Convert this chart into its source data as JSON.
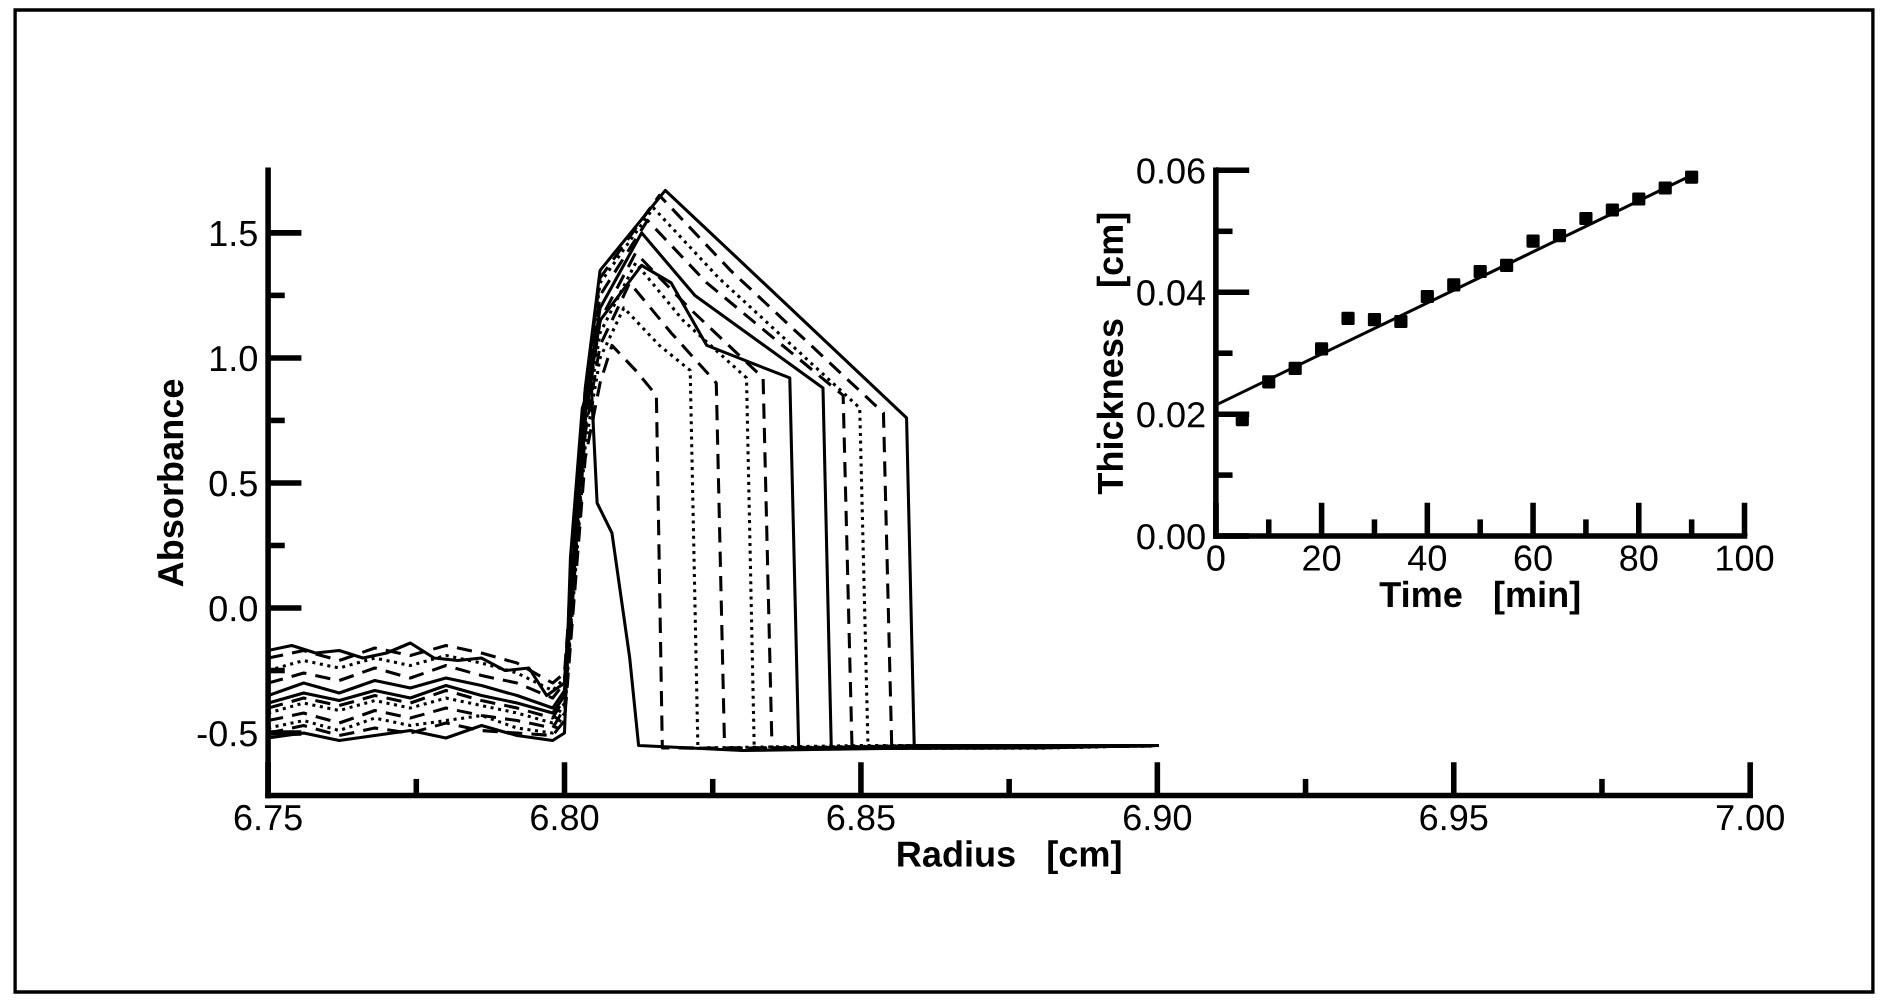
{
  "chart_data": [
    {
      "type": "line",
      "xlabel": "Radius   [cm]",
      "ylabel": "Absorbance",
      "xlim": [
        6.75,
        7.0
      ],
      "ylim": [
        -0.75,
        1.75
      ],
      "xticks": [
        {
          "value": 6.75,
          "label": "6.75"
        },
        {
          "value": 6.775,
          "label": null
        },
        {
          "value": 6.8,
          "label": "6.80"
        },
        {
          "value": 6.825,
          "label": null
        },
        {
          "value": 6.85,
          "label": "6.85"
        },
        {
          "value": 6.875,
          "label": null
        },
        {
          "value": 6.9,
          "label": "6.90"
        },
        {
          "value": 6.925,
          "label": null
        },
        {
          "value": 6.95,
          "label": "6.95"
        },
        {
          "value": 6.975,
          "label": null
        },
        {
          "value": 7.0,
          "label": "7.00"
        }
      ],
      "yticks": [
        {
          "value": -0.5,
          "label": "-0.5"
        },
        {
          "value": -0.25,
          "label": null
        },
        {
          "value": 0.0,
          "label": "0.0"
        },
        {
          "value": 0.25,
          "label": null
        },
        {
          "value": 0.5,
          "label": "0.5"
        },
        {
          "value": 0.75,
          "label": null
        },
        {
          "value": 1.0,
          "label": "1.0"
        },
        {
          "value": 1.25,
          "label": null
        },
        {
          "value": 1.5,
          "label": "1.5"
        }
      ],
      "grid": false,
      "legend": false,
      "marker": "none",
      "series": [
        {
          "color": "#000000",
          "line_style": "solid",
          "x": [
            6.75,
            6.756,
            6.762,
            6.768,
            6.774,
            6.78,
            6.786,
            6.792,
            6.798,
            6.8,
            6.801,
            6.803,
            6.8045,
            6.8055,
            6.808,
            6.811,
            6.8125,
            6.83,
            6.86,
            6.88,
            6.9
          ],
          "values": [
            -0.52,
            -0.5,
            -0.53,
            -0.51,
            -0.49,
            -0.52,
            -0.47,
            -0.51,
            -0.53,
            -0.5,
            0.2,
            0.8,
            0.9,
            0.42,
            0.3,
            -0.2,
            -0.55,
            -0.57,
            -0.56,
            -0.55,
            -0.55
          ]
        },
        {
          "color": "#000000",
          "line_style": "dashed",
          "x": [
            6.75,
            6.756,
            6.762,
            6.768,
            6.774,
            6.78,
            6.786,
            6.792,
            6.798,
            6.8,
            6.8035,
            6.806,
            6.808,
            6.812,
            6.8155,
            6.8165,
            6.84,
            6.9
          ],
          "values": [
            -0.5,
            -0.47,
            -0.51,
            -0.48,
            -0.5,
            -0.46,
            -0.49,
            -0.5,
            -0.51,
            -0.45,
            0.6,
            0.9,
            1.05,
            0.95,
            0.85,
            -0.56,
            -0.56,
            -0.55
          ]
        },
        {
          "color": "#000000",
          "line_style": "dotted",
          "x": [
            6.75,
            6.756,
            6.762,
            6.768,
            6.774,
            6.78,
            6.786,
            6.792,
            6.798,
            6.8,
            6.8035,
            6.806,
            6.81,
            6.816,
            6.8212,
            6.8225,
            6.85,
            6.9
          ],
          "values": [
            -0.48,
            -0.45,
            -0.49,
            -0.44,
            -0.47,
            -0.45,
            -0.43,
            -0.48,
            -0.5,
            -0.42,
            0.65,
            1.0,
            1.2,
            1.05,
            0.95,
            -0.56,
            -0.55,
            -0.55
          ]
        },
        {
          "color": "#000000",
          "line_style": "dashed",
          "x": [
            6.75,
            6.756,
            6.762,
            6.768,
            6.774,
            6.78,
            6.786,
            6.792,
            6.798,
            6.8,
            6.8035,
            6.806,
            6.811,
            6.818,
            6.8256,
            6.827,
            6.85,
            6.9
          ],
          "values": [
            -0.45,
            -0.42,
            -0.46,
            -0.41,
            -0.44,
            -0.4,
            -0.43,
            -0.45,
            -0.48,
            -0.4,
            0.7,
            1.05,
            1.3,
            1.1,
            0.9,
            -0.56,
            -0.56,
            -0.55
          ]
        },
        {
          "color": "#000000",
          "line_style": "dotted",
          "x": [
            6.75,
            6.756,
            6.762,
            6.768,
            6.774,
            6.78,
            6.786,
            6.792,
            6.798,
            6.8,
            6.8035,
            6.806,
            6.812,
            6.82,
            6.8307,
            6.832,
            6.86,
            6.9
          ],
          "values": [
            -0.42,
            -0.38,
            -0.41,
            -0.37,
            -0.4,
            -0.36,
            -0.39,
            -0.42,
            -0.46,
            -0.38,
            0.72,
            1.1,
            1.38,
            1.15,
            0.92,
            -0.56,
            -0.55,
            -0.55
          ]
        },
        {
          "color": "#000000",
          "line_style": "dashed",
          "x": [
            6.75,
            6.756,
            6.762,
            6.768,
            6.774,
            6.78,
            6.786,
            6.792,
            6.798,
            6.8,
            6.8035,
            6.806,
            6.812,
            6.821,
            6.8335,
            6.835,
            6.86,
            6.9
          ],
          "values": [
            -0.4,
            -0.36,
            -0.39,
            -0.35,
            -0.38,
            -0.33,
            -0.37,
            -0.4,
            -0.44,
            -0.36,
            0.75,
            1.15,
            1.42,
            1.2,
            0.92,
            -0.56,
            -0.56,
            -0.55
          ]
        },
        {
          "color": "#000000",
          "line_style": "solid",
          "x": [
            6.75,
            6.756,
            6.762,
            6.768,
            6.774,
            6.78,
            6.786,
            6.792,
            6.798,
            6.8,
            6.8035,
            6.806,
            6.813,
            6.818,
            6.824,
            6.838,
            6.8395,
            6.86,
            6.9
          ],
          "values": [
            -0.38,
            -0.34,
            -0.37,
            -0.33,
            -0.36,
            -0.31,
            -0.35,
            -0.38,
            -0.42,
            -0.35,
            0.78,
            1.15,
            1.37,
            1.3,
            1.05,
            0.92,
            -0.56,
            -0.55,
            -0.55
          ]
        },
        {
          "color": "#000000",
          "line_style": "solid",
          "x": [
            6.75,
            6.756,
            6.762,
            6.768,
            6.774,
            6.78,
            6.786,
            6.792,
            6.798,
            6.8,
            6.8035,
            6.806,
            6.813,
            6.822,
            6.8436,
            6.845,
            6.87,
            6.9
          ],
          "values": [
            -0.35,
            -0.3,
            -0.34,
            -0.29,
            -0.32,
            -0.28,
            -0.31,
            -0.35,
            -0.4,
            -0.33,
            0.8,
            1.2,
            1.5,
            1.25,
            0.88,
            -0.56,
            -0.56,
            -0.55
          ]
        },
        {
          "color": "#000000",
          "line_style": "dashed",
          "x": [
            6.75,
            6.756,
            6.762,
            6.768,
            6.774,
            6.78,
            6.786,
            6.792,
            6.798,
            6.8,
            6.8035,
            6.806,
            6.814,
            6.824,
            6.847,
            6.8485,
            6.87,
            6.9
          ],
          "values": [
            -0.3,
            -0.26,
            -0.29,
            -0.24,
            -0.28,
            -0.23,
            -0.27,
            -0.3,
            -0.36,
            -0.3,
            0.82,
            1.25,
            1.55,
            1.3,
            0.85,
            -0.56,
            -0.55,
            -0.55
          ]
        },
        {
          "color": "#000000",
          "line_style": "dotted",
          "x": [
            6.75,
            6.756,
            6.762,
            6.768,
            6.774,
            6.78,
            6.786,
            6.792,
            6.798,
            6.8,
            6.8035,
            6.806,
            6.815,
            6.826,
            6.8498,
            6.8512,
            6.88,
            6.9
          ],
          "values": [
            -0.25,
            -0.21,
            -0.24,
            -0.2,
            -0.23,
            -0.19,
            -0.22,
            -0.26,
            -0.33,
            -0.28,
            0.84,
            1.3,
            1.6,
            1.32,
            0.8,
            -0.56,
            -0.56,
            -0.55
          ]
        },
        {
          "color": "#000000",
          "line_style": "dashed",
          "x": [
            6.75,
            6.756,
            6.762,
            6.768,
            6.774,
            6.78,
            6.786,
            6.792,
            6.798,
            6.8,
            6.8035,
            6.806,
            6.816,
            6.828,
            6.8538,
            6.8552,
            6.88,
            6.9
          ],
          "values": [
            -0.2,
            -0.17,
            -0.21,
            -0.16,
            -0.19,
            -0.15,
            -0.18,
            -0.22,
            -0.3,
            -0.26,
            0.86,
            1.32,
            1.65,
            1.35,
            0.78,
            -0.56,
            -0.55,
            -0.55
          ]
        },
        {
          "color": "#000000",
          "line_style": "solid",
          "x": [
            6.75,
            6.754,
            6.758,
            6.762,
            6.766,
            6.77,
            6.774,
            6.778,
            6.782,
            6.786,
            6.79,
            6.794,
            6.797,
            6.8,
            6.8035,
            6.806,
            6.817,
            6.83,
            6.8577,
            6.859,
            6.88,
            6.9
          ],
          "values": [
            -0.17,
            -0.15,
            -0.18,
            -0.17,
            -0.2,
            -0.18,
            -0.14,
            -0.2,
            -0.21,
            -0.2,
            -0.25,
            -0.24,
            -0.35,
            -0.3,
            0.88,
            1.35,
            1.67,
            1.38,
            0.76,
            -0.56,
            -0.56,
            -0.55
          ]
        }
      ]
    },
    {
      "type": "scatter",
      "xlabel": "Time   [min]",
      "ylabel": "Thickness   [cm]",
      "xlim": [
        0,
        100
      ],
      "ylim": [
        0.0,
        0.06
      ],
      "xticks": [
        0,
        {
          "value": 10,
          "label": null
        },
        20,
        {
          "value": 30,
          "label": null
        },
        40,
        {
          "value": 50,
          "label": null
        },
        60,
        {
          "value": 70,
          "label": null
        },
        80,
        {
          "value": 90,
          "label": null
        },
        100
      ],
      "yticks": [
        {
          "value": 0.0,
          "label": "0.00"
        },
        {
          "value": 0.01,
          "label": null
        },
        {
          "value": 0.02,
          "label": "0.02"
        },
        {
          "value": 0.03,
          "label": null
        },
        {
          "value": 0.04,
          "label": "0.04"
        },
        {
          "value": 0.05,
          "label": null
        },
        {
          "value": 0.06,
          "label": "0.06"
        }
      ],
      "grid": false,
      "legend": false,
      "series": [
        {
          "color": "#000000",
          "marker": "square",
          "x": [
            5,
            10,
            15,
            20,
            25,
            30,
            35,
            40,
            45,
            50,
            55,
            60,
            65,
            70,
            75,
            80,
            85,
            90
          ],
          "values": [
            0.0191,
            0.0253,
            0.0275,
            0.0307,
            0.0357,
            0.0355,
            0.0352,
            0.0393,
            0.0412,
            0.0434,
            0.0444,
            0.0484,
            0.0493,
            0.0521,
            0.0535,
            0.0553,
            0.0571,
            0.0589
          ]
        },
        {
          "type": "line",
          "color": "#000000",
          "marker": "none",
          "x": [
            0,
            90
          ],
          "values": [
            0.0215,
            0.0592
          ]
        }
      ]
    }
  ]
}
